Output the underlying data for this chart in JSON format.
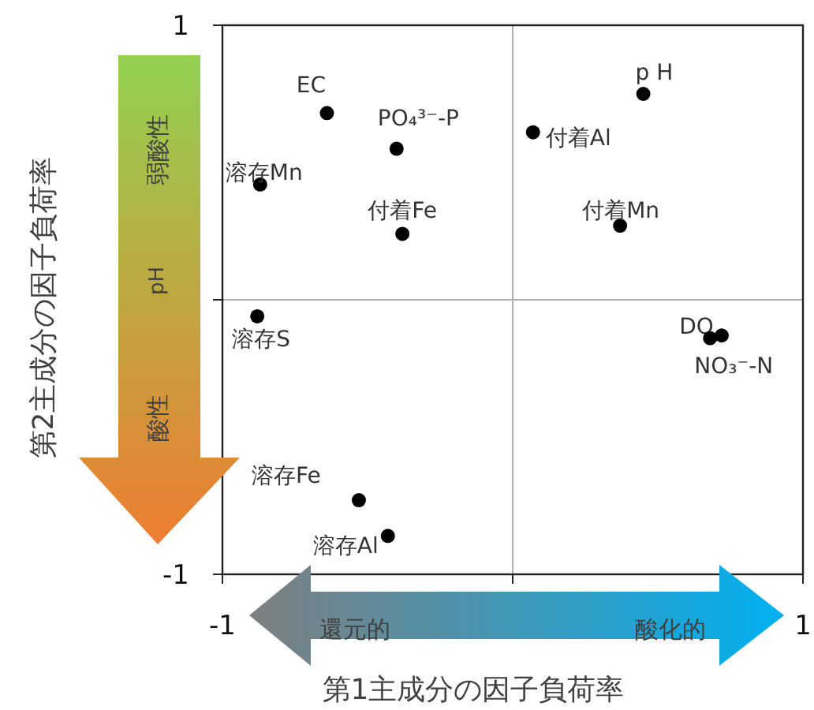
{
  "chart_data": {
    "type": "scatter",
    "xlabel": "第1主成分の因子負荷率",
    "ylabel": "第2主成分の因子負荷率",
    "xlim": [
      -1,
      1
    ],
    "ylim": [
      -1,
      1
    ],
    "xticks": [
      -1,
      {
        "value": 0,
        "label": null
      },
      1
    ],
    "yticks": [
      -1,
      {
        "value": 0,
        "label": null
      },
      1
    ],
    "grid": true,
    "marker": "circle",
    "series": [
      {
        "name": "EC",
        "color": "#000000",
        "x": [
          -0.64
        ],
        "values": [
          0.68
        ]
      },
      {
        "name": "PO₄³⁻-P",
        "color": "#000000",
        "x": [
          -0.4
        ],
        "values": [
          0.55
        ]
      },
      {
        "name": "溶存Mn",
        "color": "#000000",
        "x": [
          -0.87
        ],
        "values": [
          0.42
        ]
      },
      {
        "name": "付着Fe",
        "color": "#000000",
        "x": [
          -0.38
        ],
        "values": [
          0.24
        ]
      },
      {
        "name": "付着Al",
        "color": "#000000",
        "x": [
          0.07
        ],
        "values": [
          0.61
        ]
      },
      {
        "name": "p H",
        "color": "#000000",
        "x": [
          0.45
        ],
        "values": [
          0.75
        ]
      },
      {
        "name": "付着Mn",
        "color": "#000000",
        "x": [
          0.37
        ],
        "values": [
          0.27
        ]
      },
      {
        "name": "溶存S",
        "color": "#000000",
        "x": [
          -0.88
        ],
        "values": [
          -0.06
        ]
      },
      {
        "name": "DO",
        "color": "#000000",
        "x": [
          0.72
        ],
        "values": [
          -0.13
        ]
      },
      {
        "name": "NO₃⁻-N",
        "color": "#000000",
        "x": [
          0.68
        ],
        "values": [
          -0.14
        ]
      },
      {
        "name": "溶存Fe",
        "color": "#000000",
        "x": [
          -0.53
        ],
        "values": [
          -0.73
        ]
      },
      {
        "name": "溶存Al",
        "color": "#000000",
        "x": [
          -0.43
        ],
        "values": [
          -0.86
        ]
      }
    ],
    "annotations": [
      "弱酸性",
      "pH",
      "酸性",
      "還元的",
      "酸化的"
    ]
  }
}
